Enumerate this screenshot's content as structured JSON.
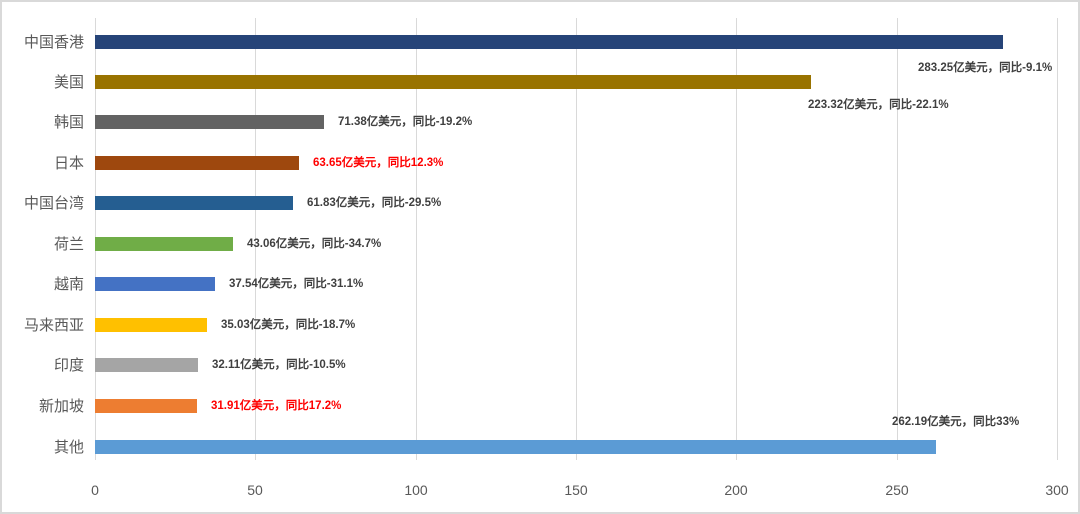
{
  "chart_data": {
    "type": "bar",
    "orientation": "horizontal",
    "title": "",
    "xlabel": "",
    "ylabel": "",
    "xlim": [
      0,
      300
    ],
    "grid": true,
    "legend": null,
    "x_ticks": [
      "0",
      "50",
      "100",
      "150",
      "200",
      "250",
      "300"
    ],
    "categories": [
      "中国香港",
      "美国",
      "韩国",
      "日本",
      "中国台湾",
      "荷兰",
      "越南",
      "马来西亚",
      "印度",
      "新加坡",
      "其他"
    ],
    "values": [
      283.25,
      223.32,
      71.38,
      63.65,
      61.83,
      43.06,
      37.54,
      35.03,
      32.11,
      31.91,
      262.19
    ],
    "yoy_change_percent": [
      -9.1,
      -22.1,
      -19.2,
      12.3,
      -29.5,
      -34.7,
      -31.1,
      -18.7,
      -10.5,
      17.2,
      33
    ],
    "unit": "亿美元",
    "data_labels": [
      "283.25亿美元，同比-9.1%",
      "223.32亿美元，同比-22.1%",
      "71.38亿美元，同比-19.2%",
      "63.65亿美元，同比12.3%",
      "61.83亿美元，同比-29.5%",
      "43.06亿美元，同比-34.7%",
      "37.54亿美元，同比-31.1%",
      "35.03亿美元，同比-18.7%",
      "32.11亿美元，同比-10.5%",
      "31.91亿美元，同比17.2%",
      "262.19亿美元，同比33%"
    ],
    "bar_colors": [
      "#264478",
      "#997300",
      "#636363",
      "#9e480e",
      "#255e91",
      "#70ad47",
      "#4472c4",
      "#ffc000",
      "#a5a5a5",
      "#ed7d31",
      "#5b9bd5"
    ],
    "label_colors": [
      "#404040",
      "#404040",
      "#404040",
      "#ff0000",
      "#404040",
      "#404040",
      "#404040",
      "#404040",
      "#404040",
      "#ff0000",
      "#404040"
    ]
  },
  "axis": {
    "ticks": [
      "0",
      "50",
      "100",
      "150",
      "200",
      "250",
      "300"
    ]
  }
}
